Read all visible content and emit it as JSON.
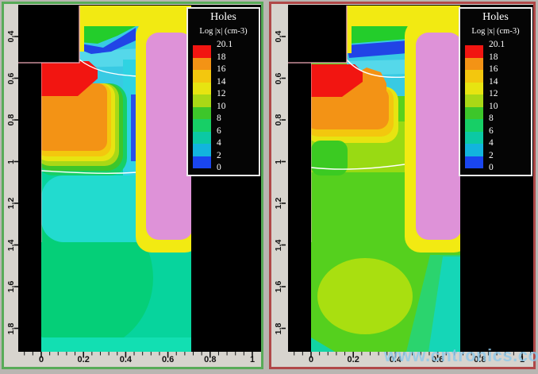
{
  "watermark": {
    "text": "www.cntronics.com",
    "color": "#8cc8eb"
  },
  "legend": {
    "title": "Holes",
    "subtitle": "Log |x| (cm-3)",
    "levels": [
      "20.1",
      "18",
      "16",
      "14",
      "12",
      "10",
      "8",
      "6",
      "4",
      "2",
      "0"
    ],
    "band_colors": [
      "#f21511",
      "#f39315",
      "#f3c70e",
      "#e7e411",
      "#a9d816",
      "#3dc62a",
      "#17cf66",
      "#0bc9a4",
      "#12b4de",
      "#1a46f0"
    ]
  },
  "axes": {
    "x_ticks": [
      "0",
      "0.2",
      "0.4",
      "0.6",
      "0.8",
      "1"
    ],
    "y_ticks": [
      "0.4",
      "0.6",
      "0.8",
      "1",
      "1.2",
      "1.4",
      "1.6",
      "1.8"
    ]
  },
  "chart_data": {
    "type": "heatmap",
    "title": "Holes",
    "colorbar_label": "Log |x| (cm-3)",
    "colorbar_levels": [
      20.1,
      18,
      16,
      14,
      12,
      10,
      8,
      6,
      4,
      2,
      0
    ],
    "colorbar_colors": [
      "#f21511",
      "#f39315",
      "#f3c70e",
      "#e7e411",
      "#a9d816",
      "#3dc62a",
      "#17cf66",
      "#0bc9a4",
      "#12b4de",
      "#1a46f0"
    ],
    "x_ticks": [
      0,
      0.2,
      0.4,
      0.6,
      0.8,
      1
    ],
    "y_ticks": [
      0.4,
      0.6,
      0.8,
      1,
      1.2,
      1.4,
      1.6,
      1.8
    ],
    "grid": false,
    "legend_position": "top-right inside each panel",
    "panels": [
      {
        "side": "left",
        "frame_color": "#58ab58",
        "description": "Trench-gate device cross-section, hole-concentration contours: black source contact top-left, red p+ region (~20), orange body (~18-16), magenta trench gate with yellow oxide liner, bulk drift region rendered teal/cyan (levels ~6-8)"
      },
      {
        "side": "right",
        "frame_color": "#b04848",
        "description": "Same device geometry and colormap; orange body region extends further right and bulk drift region is green/yellow-green (levels ~10-12), teal only near trench bottom and corners"
      }
    ]
  }
}
